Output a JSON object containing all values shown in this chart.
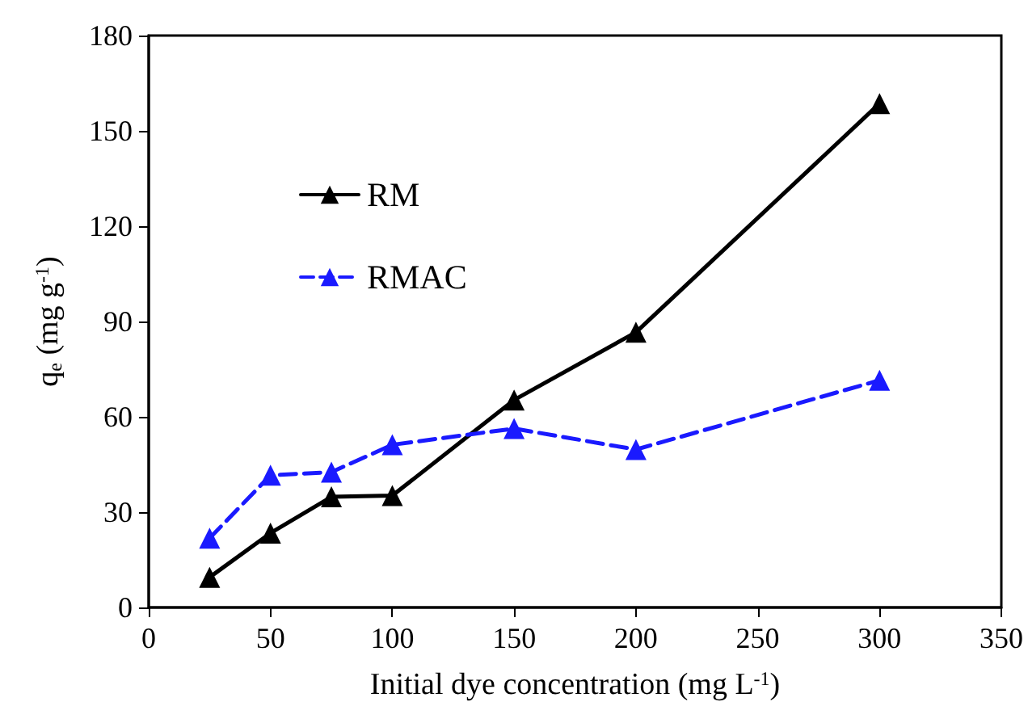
{
  "chart_data": {
    "type": "line",
    "xlabel": "Initial dye concentration (mg L$^{-1}$)",
    "ylabel": "q$_{e}$ (mg g$^{-1}$)",
    "x": [
      25,
      50,
      75,
      100,
      150,
      200,
      300
    ],
    "series": [
      {
        "name": "RM",
        "color": "#000000",
        "line_style": "solid",
        "values": [
          9.5,
          23.4,
          34.8,
          35.2,
          65.3,
          86.6,
          158.6
        ]
      },
      {
        "name": "RMAC",
        "color": "#1a1aff",
        "line_style": "dashed",
        "values": [
          21.8,
          41.6,
          42.6,
          51.2,
          56.3,
          49.7,
          71.5
        ]
      }
    ],
    "xlim": [
      0,
      350
    ],
    "xticks": [
      0,
      50,
      100,
      150,
      200,
      250,
      300,
      350
    ],
    "ylim": [
      0,
      180
    ],
    "yticks": [
      0,
      30,
      60,
      90,
      120,
      150,
      180
    ],
    "grid": false,
    "legend": "top left",
    "marker": "triangle"
  }
}
